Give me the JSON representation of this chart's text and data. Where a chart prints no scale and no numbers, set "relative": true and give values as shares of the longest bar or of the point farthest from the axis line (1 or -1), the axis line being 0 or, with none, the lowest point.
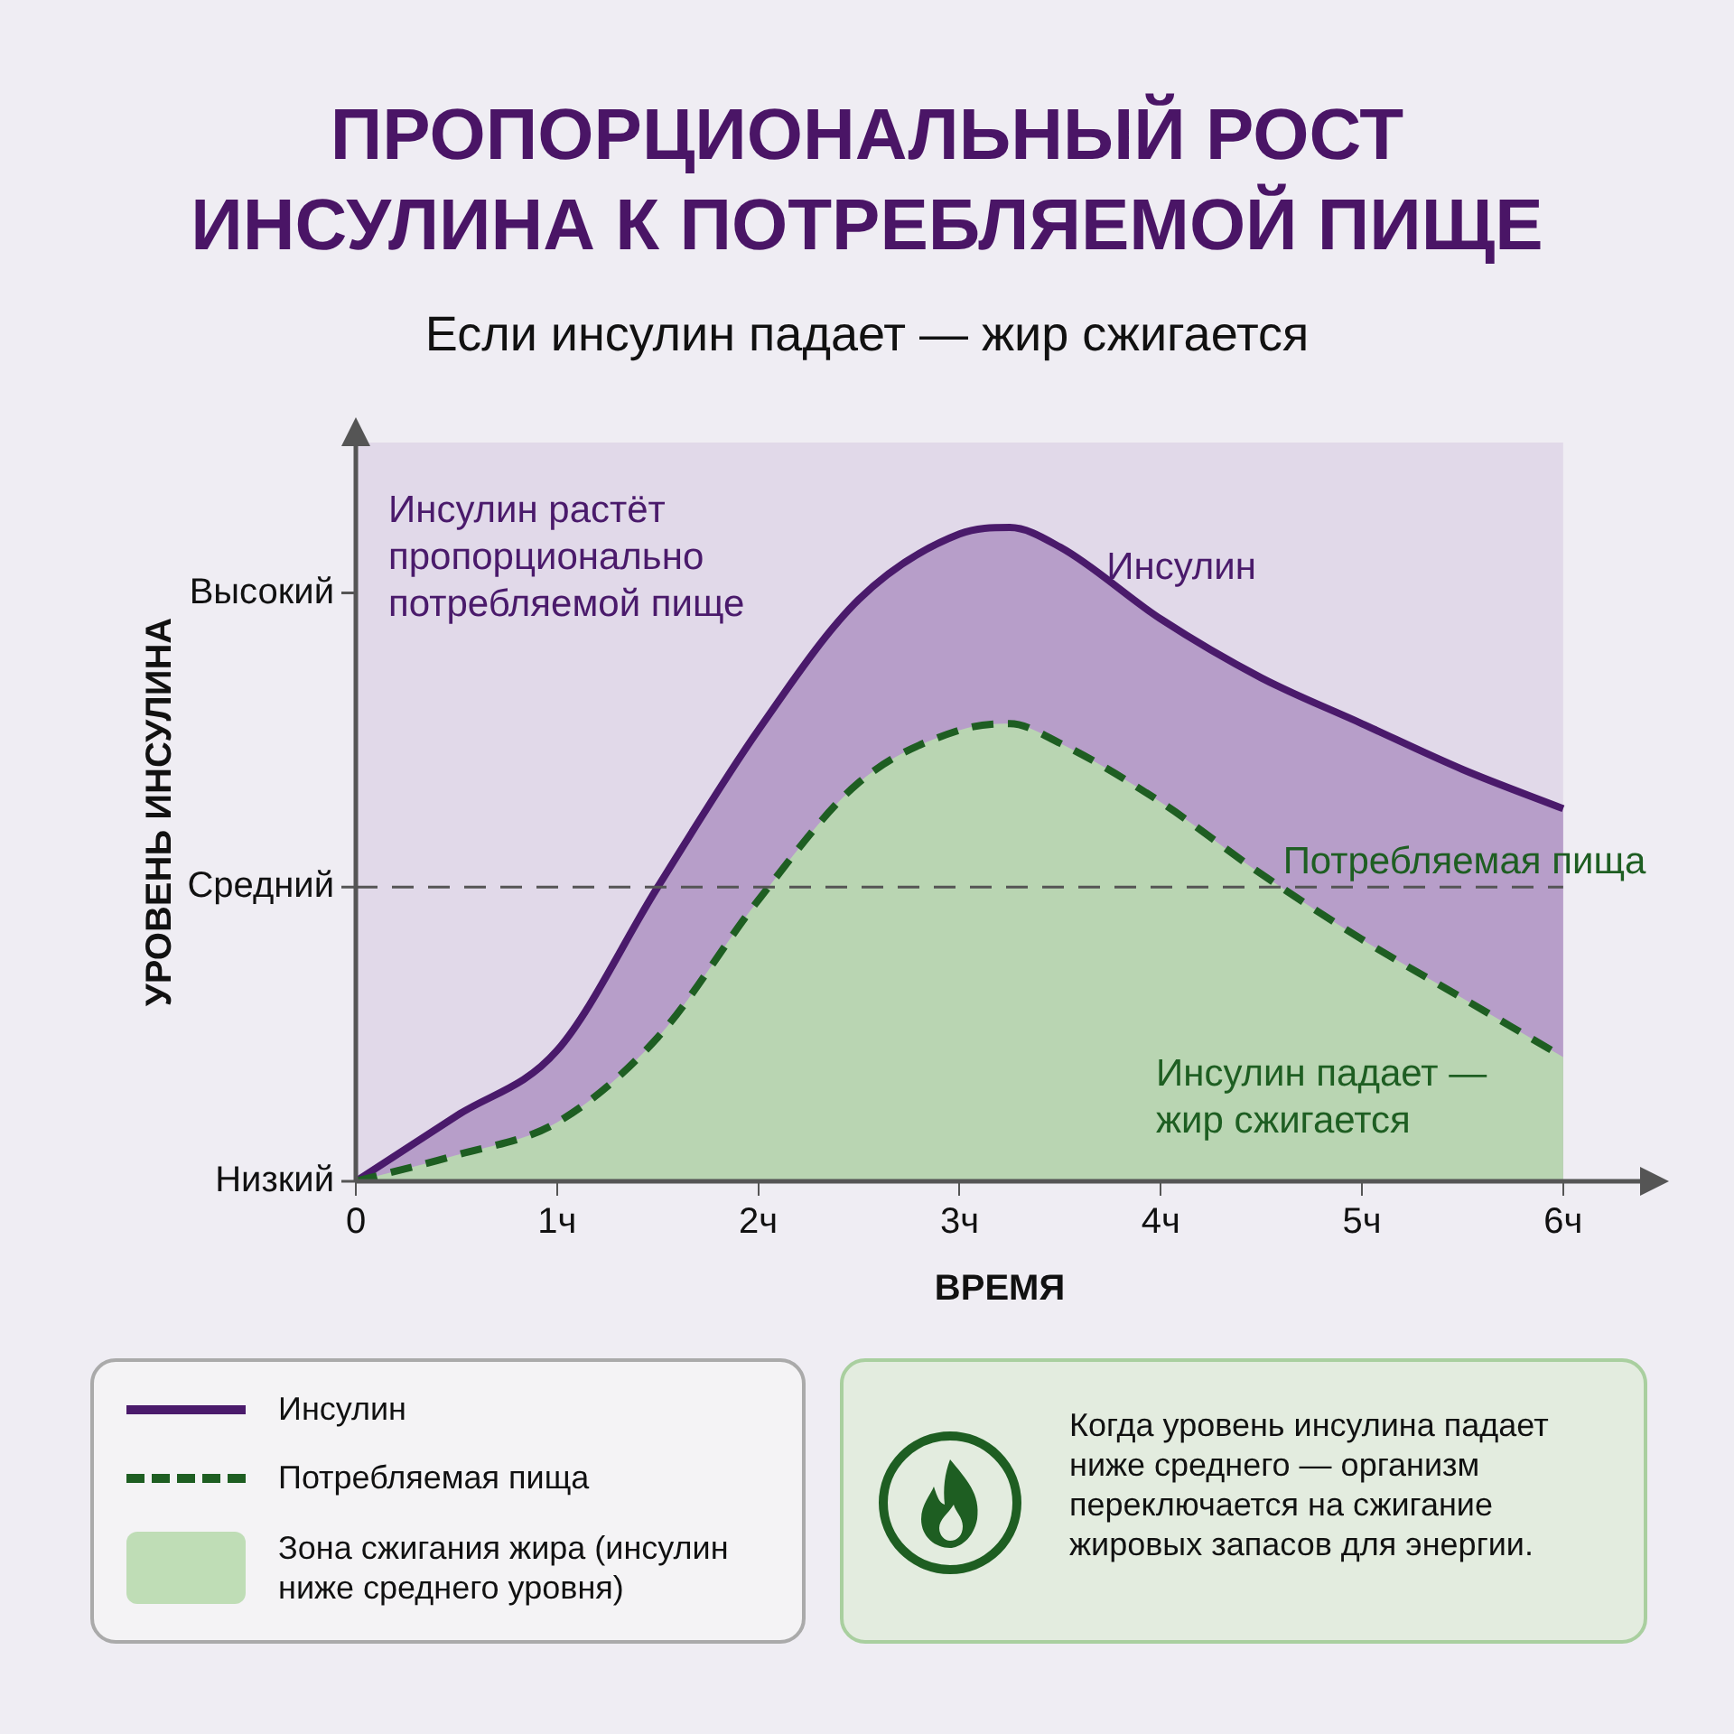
{
  "chart_data": {
    "type": "area",
    "title": "ПРОПОРЦИОНАЛЬНЫЙ РОСТ ИНСУЛИНА К ПОТРЕБЛЯЕМОЙ ПИЩЕ",
    "subtitle": "Если инсулин падает — жир сжигается",
    "xlabel": "ВРЕМЯ",
    "ylabel": "УРОВЕНЬ ИНСУЛИНА",
    "x": [
      0,
      0.5,
      1,
      1.5,
      2,
      2.5,
      3,
      3.25,
      3.5,
      4,
      4.5,
      5,
      5.5,
      6
    ],
    "series": [
      {
        "name": "Инсулин",
        "color": "#4a1a6b",
        "line_style": "solid",
        "values": [
          0,
          0.1,
          0.2,
          0.45,
          0.69,
          0.89,
          0.99,
          1,
          0.97,
          0.86,
          0.77,
          0.7,
          0.63,
          0.57
        ]
      },
      {
        "name": "Потребляемая пища",
        "color": "#1e5e22",
        "line_style": "dashed",
        "values": [
          0,
          0.04,
          0.09,
          0.22,
          0.43,
          0.61,
          0.69,
          0.7,
          0.67,
          0.58,
          0.47,
          0.37,
          0.28,
          0.19
        ]
      }
    ],
    "relative": true,
    "xlim": [
      0,
      6.4
    ],
    "xticks": [
      0,
      {
        "value": 1,
        "label": "1ч"
      },
      {
        "value": 2,
        "label": "2ч"
      },
      {
        "value": 3,
        "label": "3ч"
      },
      {
        "value": 4,
        "label": "4ч"
      },
      {
        "value": 5,
        "label": "5ч"
      },
      {
        "value": 6,
        "label": "6ч"
      }
    ],
    "ref_lines": [
      {
        "axis": "y",
        "value": 0.45,
        "label": "Средний",
        "color": "#555555",
        "line_style": "dashed"
      }
    ],
    "annotations": [
      "Инсулин растёт пропорционально потребляемой пище",
      "Инсулин падает — жир сжигается",
      "Зона сжигания жира (инсулин ниже среднего уровня)",
      "Когда уровень инсулина падает ниже среднего — организм переключается на сжигание жировых запасов для энергии.",
      "Высокий",
      "Низкий"
    ],
    "grid": false,
    "legend": "bottom",
    "marker": "none"
  }
}
